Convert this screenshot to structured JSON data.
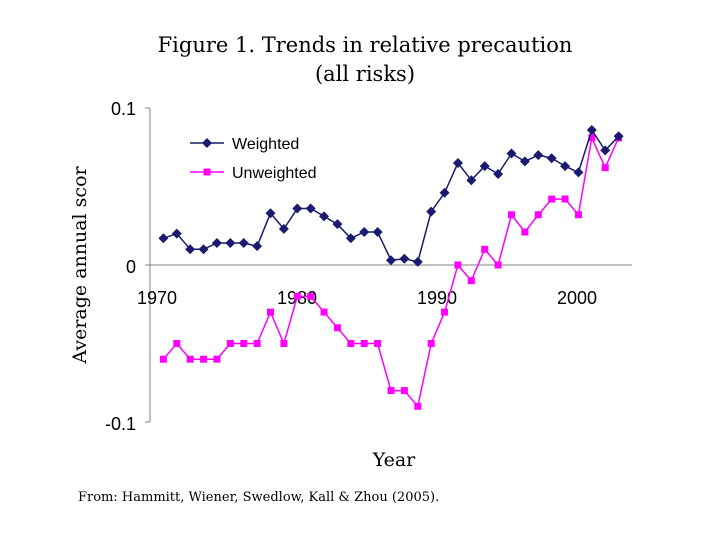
{
  "chart_data": {
    "type": "line",
    "title_lines": [
      "Figure 1. Trends in relative precaution",
      "(all risks)"
    ],
    "xlabel": "Year",
    "ylabel": "Average annual scor",
    "x_ticks": [
      "1970",
      "1980",
      "1990",
      "2000"
    ],
    "y_ticks": [
      "0.1",
      "0",
      "-0.1"
    ],
    "xlim": [
      1969,
      2005
    ],
    "ylim": [
      -0.1,
      0.1
    ],
    "x": [
      1970,
      1971,
      1972,
      1973,
      1974,
      1975,
      1976,
      1977,
      1978,
      1979,
      1980,
      1981,
      1982,
      1983,
      1984,
      1985,
      1986,
      1987,
      1988,
      1989,
      1990,
      1991,
      1992,
      1993,
      1994,
      1995,
      1996,
      1997,
      1998,
      1999,
      2000,
      2001,
      2002,
      2003,
      2004
    ],
    "series": [
      {
        "name": "Weighted",
        "color": "#1a1a6e",
        "marker": "diamond",
        "values": [
          0.017,
          0.02,
          0.01,
          0.01,
          0.014,
          0.014,
          0.014,
          0.012,
          0.033,
          0.023,
          0.036,
          0.036,
          0.031,
          0.026,
          0.017,
          0.021,
          0.021,
          0.003,
          0.004,
          0.002,
          0.034,
          0.046,
          0.065,
          0.054,
          0.063,
          0.058,
          0.071,
          0.066,
          0.07,
          0.068,
          0.063,
          0.059,
          0.086,
          0.073,
          0.082
        ]
      },
      {
        "name": "Unweighted",
        "color": "#ff00ff",
        "marker": "square",
        "values": [
          -0.06,
          -0.05,
          -0.06,
          -0.06,
          -0.06,
          -0.05,
          -0.05,
          -0.05,
          -0.03,
          -0.05,
          -0.02,
          -0.02,
          -0.03,
          -0.04,
          -0.05,
          -0.05,
          -0.05,
          -0.08,
          -0.08,
          -0.09,
          -0.05,
          -0.03,
          0.0,
          -0.01,
          0.01,
          0.0,
          0.032,
          0.021,
          0.032,
          0.042,
          0.042,
          0.032,
          0.081,
          0.062,
          0.081
        ]
      }
    ],
    "legend_position": "top-left",
    "grid": "horizontal-zero-line"
  },
  "source_text": "From:  Hammitt, Wiener, Swedlow, Kall & Zhou (2005)."
}
